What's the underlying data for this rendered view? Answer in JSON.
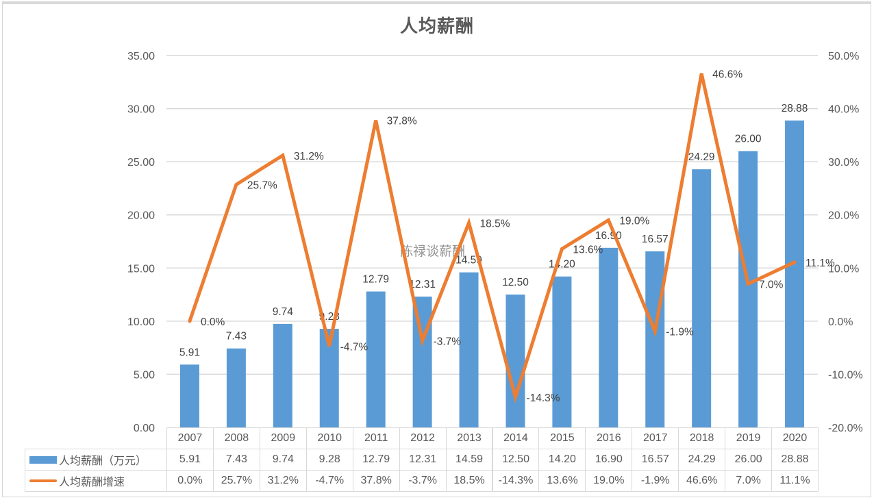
{
  "chart_data": {
    "type": "bar+line",
    "title": "人均薪酬",
    "categories": [
      "2007",
      "2008",
      "2009",
      "2010",
      "2011",
      "2012",
      "2013",
      "2014",
      "2015",
      "2016",
      "2017",
      "2018",
      "2019",
      "2020"
    ],
    "series": [
      {
        "name": "人均薪酬（万元）",
        "type": "bar",
        "axis": "left",
        "color": "#5b9bd5",
        "values": [
          5.91,
          7.43,
          9.74,
          9.28,
          12.79,
          12.31,
          14.59,
          12.5,
          14.2,
          16.9,
          16.57,
          24.29,
          26.0,
          28.88
        ],
        "labels": [
          "5.91",
          "7.43",
          "9.74",
          "9.28",
          "12.79",
          "12.31",
          "14.59",
          "12.50",
          "14.20",
          "16.90",
          "16.57",
          "24.29",
          "26.00",
          "28.88"
        ]
      },
      {
        "name": "人均薪酬增速",
        "type": "line",
        "axis": "right",
        "color": "#ed7d31",
        "values": [
          0.0,
          25.7,
          31.2,
          -4.7,
          37.8,
          -3.7,
          18.5,
          -14.3,
          13.6,
          19.0,
          -1.9,
          46.6,
          7.0,
          11.1
        ],
        "labels": [
          "0.0%",
          "25.7%",
          "31.2%",
          "-4.7%",
          "37.8%",
          "-3.7%",
          "18.5%",
          "-14.3%",
          "13.6%",
          "19.0%",
          "-1.9%",
          "46.6%",
          "7.0%",
          "11.1%"
        ]
      }
    ],
    "left_axis": {
      "ylim": [
        0,
        35
      ],
      "ticks": [
        "0.00",
        "5.00",
        "10.00",
        "15.00",
        "20.00",
        "25.00",
        "30.00",
        "35.00"
      ]
    },
    "right_axis": {
      "ylim": [
        -20,
        50
      ],
      "ticks": [
        "-20.0%",
        "-10.0%",
        "0.0%",
        "10.0%",
        "20.0%",
        "30.0%",
        "40.0%",
        "50.0%"
      ]
    },
    "grid": true,
    "legend_position": "data-table-bottom",
    "data_table": true,
    "watermark": "陈禄谈薪酬"
  }
}
